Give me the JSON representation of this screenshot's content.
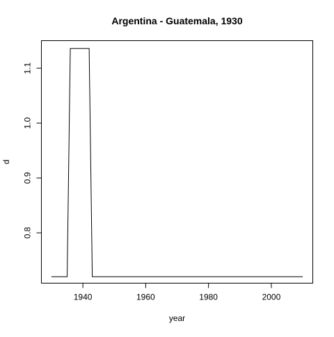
{
  "chart_data": {
    "type": "line",
    "title": "Argentina - Guatemala, 1930",
    "xlabel": "year",
    "ylabel": "d",
    "xlim": [
      1926.8,
      2013.2
    ],
    "ylim": [
      0.7083,
      1.1502
    ],
    "xticks": [
      1940,
      1960,
      1980,
      2000
    ],
    "yticks": [
      0.8,
      0.9,
      1.0,
      1.1
    ],
    "xtick_labels": [
      "1940",
      "1960",
      "1980",
      "2000"
    ],
    "ytick_labels": [
      "0.8",
      "0.9",
      "1.0",
      "1.1"
    ],
    "grid": false,
    "line_color": "#000000",
    "series": [
      {
        "x": [
          1930,
          1935,
          1936,
          1942,
          1943,
          2010
        ],
        "y": [
          0.72,
          0.72,
          1.136,
          1.136,
          0.72,
          0.72
        ]
      }
    ]
  }
}
